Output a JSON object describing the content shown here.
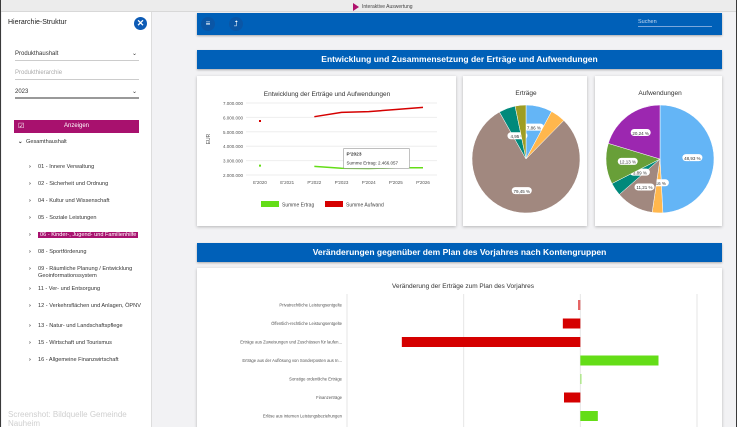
{
  "window": {
    "title": "Interaktive Auswertung"
  },
  "sidebar": {
    "title": "Hierarchie-Struktur",
    "haushalt": "Produkthaushalt",
    "hierarchie_placeholder": "Produkthierarchie",
    "year": "2023",
    "show_button": "Anzeigen",
    "root": "Gesamthaushalt",
    "items": [
      "01 - Innere Verwaltung",
      "02 - Sicherheit und Ordnung",
      "04 - Kultur und Wissenschaft",
      "05 - Soziale Leistungen",
      "06 - Kinder-, Jugend- und Familienhilfe",
      "08 - Sportförderung",
      "09 - Räumliche Planung / Entwicklung Geoinformationssystem",
      "11 - Ver- und Entsorgung",
      "12 - Verkehrsflächen und Anlagen, ÖPNV",
      "13 - Natur- und Landschaftspflege",
      "15 - Wirtschaft und Tourismus",
      "16 - Allgemeine Finanzwirtschaft"
    ],
    "selected_index": 4
  },
  "watermark": "Screenshot: Bildquelle Gemeinde Nauheim",
  "toolbar": {
    "search_placeholder": "Suchen"
  },
  "sections": [
    "Entwicklung und Zusammensetzung der Erträge und Aufwendungen",
    "Veränderungen gegenüber dem Plan des Vorjahres nach Kontengruppen"
  ],
  "tooltip": {
    "title": "P'2023",
    "text": "Summe Ertrag: 2.466.057"
  },
  "chart_data": [
    {
      "type": "line",
      "title": "Entwicklung der Erträge und Aufwendungen",
      "ylabel": "EUR",
      "ylim": [
        2000000,
        7000000
      ],
      "yticks": [
        "2.000.000",
        "3.000.000",
        "4.000.000",
        "5.000.000",
        "6.000.000",
        "7.000.000"
      ],
      "categories": [
        "E'2020",
        "E'2021",
        "P'2022",
        "P'2023",
        "P'2024",
        "P'2025",
        "P'2026"
      ],
      "series": [
        {
          "name": "Summe Ertrag",
          "color": "#64dd17",
          "values": [
            2650000,
            null,
            2600000,
            2466057,
            2450000,
            2500000,
            2500000
          ]
        },
        {
          "name": "Summe Aufwand",
          "color": "#d50000",
          "values": [
            5750000,
            null,
            6050000,
            6350000,
            6400000,
            6550000,
            6700000
          ]
        }
      ],
      "legend": "bottom"
    },
    {
      "type": "pie",
      "title": "Erträge",
      "slices": [
        {
          "value": 7.86,
          "label": "7,86 %",
          "color": "#64b5f6"
        },
        {
          "value": 4.5,
          "label": "",
          "color": "#ffb74d"
        },
        {
          "value": 79.45,
          "label": "79,45 %",
          "color": "#a1887f"
        },
        {
          "value": 4.95,
          "label": "4,95 %",
          "color": "#00897b"
        },
        {
          "value": 3.24,
          "label": "",
          "color": "#9e9d24"
        }
      ]
    },
    {
      "type": "pie",
      "title": "Aufwendungen",
      "slices": [
        {
          "value": 48.93,
          "label": "48,93 %",
          "color": "#64b5f6"
        },
        {
          "value": 3.16,
          "label": "3,16 %",
          "color": "#ffb74d"
        },
        {
          "value": 11.21,
          "label": "11,21 %",
          "color": "#a1887f"
        },
        {
          "value": 3.89,
          "label": "3,89 %",
          "color": "#00897b"
        },
        {
          "value": 12.13,
          "label": "12,13 %",
          "color": "#689f38"
        },
        {
          "value": 20.24,
          "label": "20,24 %",
          "color": "#9c27b0"
        }
      ]
    },
    {
      "type": "bar",
      "orientation": "horizontal",
      "title": "Veränderung der Erträge zum Plan des Vorjahres",
      "xlim": [
        -2,
        1
      ],
      "categories": [
        "Privatrechtliche Leistungsentgelte",
        "Öffentlich-rechtliche Leistungsentgelte",
        "Erträge aus Zuweisungen und Zuschüssen für laufen...",
        "Erträge aus der Auflösung von Sonderposten aus In...",
        "Sonstige ordentliche Erträge",
        "Finanzerträge",
        "Erlöse aus internen Leistungsbeziehungen"
      ],
      "values": [
        -0.02,
        -0.15,
        -1.53,
        0.67,
        0.01,
        -0.14,
        0.15
      ],
      "positive_color": "#64dd17",
      "negative_color": "#d50000"
    }
  ]
}
